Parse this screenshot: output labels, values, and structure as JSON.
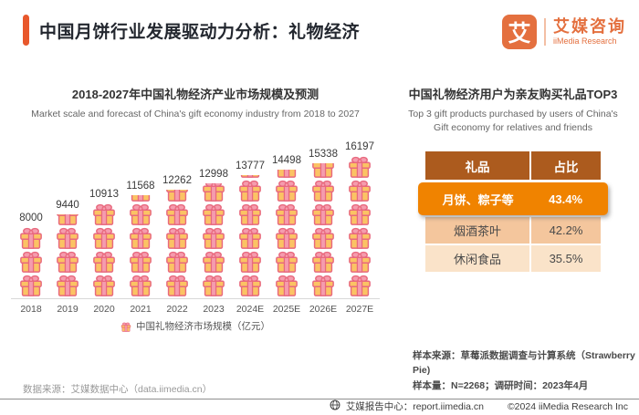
{
  "page": {
    "title": "中国月饼行业发展驱动力分析：礼物经济"
  },
  "brand": {
    "glyph": "艾",
    "name_cn": "艾媒咨询",
    "name_en": "iiMedia Research"
  },
  "chart_data": [
    {
      "type": "bar",
      "style": "pictogram-gift-stack",
      "title": "2018-2027年中国礼物经济产业市场规模及预测",
      "subtitle_en": "Market scale and forecast of China's gift economy industry from 2018 to 2027",
      "categories": [
        "2018",
        "2019",
        "2020",
        "2021",
        "2022",
        "2023",
        "2024E",
        "2025E",
        "2026E",
        "2027E"
      ],
      "values": [
        8000,
        9440,
        10913,
        11568,
        12262,
        12998,
        13777,
        14498,
        15338,
        16197
      ],
      "unit": "亿元",
      "legend": "中国礼物经济市场规模（亿元）",
      "pictogram_unit_value": 2700,
      "ylim": [
        0,
        17000
      ],
      "grid": false,
      "legend_position": "bottom"
    },
    {
      "type": "table",
      "title": "中国礼物经济用户为亲友购买礼品TOP3",
      "subtitle_en": "Top 3 gift products purchased by users of China's Gift economy for relatives and friends",
      "headers": [
        "礼品",
        "占比"
      ],
      "rows": [
        {
          "label": "月饼、粽子等",
          "value": "43.4%",
          "highlight": true
        },
        {
          "label": "烟酒茶叶",
          "value": "42.2%",
          "highlight": false
        },
        {
          "label": "休闲食品",
          "value": "35.5%",
          "highlight": false
        }
      ]
    }
  ],
  "footnotes": {
    "left": "数据来源：艾媒数据中心（data.iimedia.cn）",
    "right_line1": "样本来源：草莓派数据调查与计算系统（Strawberry Pie)",
    "right_line2": "样本量：N=2268；调研时间：2023年4月"
  },
  "footer": {
    "report_center": "艾媒报告中心：report.iimedia.cn",
    "copyright": "©2024  iiMedia Research Inc"
  },
  "colors": {
    "accent": "#E8582C",
    "brand_orange": "#E4703F",
    "table_header": "#AC5B1E",
    "highlight_row": "#F08300",
    "row_light": "#F4C69D",
    "row_lighter": "#FAE3C9",
    "gift_body": "#FBC364",
    "gift_ribbon": "#F59CAE",
    "gift_outline": "#E8697E",
    "title_text": "#23272F"
  }
}
